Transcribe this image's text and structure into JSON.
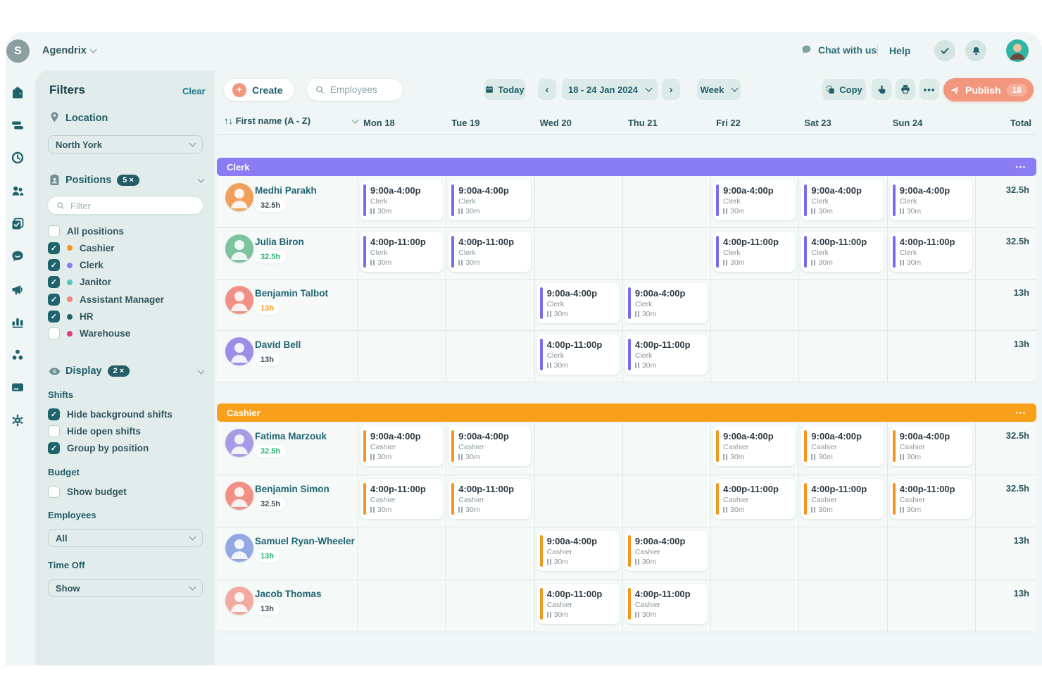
{
  "brand": {
    "logo_letter": "S",
    "name": "Agendrix"
  },
  "top_nav": {
    "chat_label": "Chat with us",
    "help_label": "Help"
  },
  "rail": {
    "items": [
      "home",
      "schedule",
      "time-clock",
      "team",
      "tasks",
      "messages",
      "announcements",
      "reports",
      "integrations",
      "billing",
      "settings"
    ]
  },
  "filters": {
    "title": "Filters",
    "clear_label": "Clear",
    "location": {
      "label": "Location",
      "value": "North York"
    },
    "positions": {
      "label": "Positions",
      "badge": "5 ×",
      "search_placeholder": "Filter",
      "items": [
        {
          "label": "All positions",
          "checked": false,
          "dot": null
        },
        {
          "label": "Cashier",
          "checked": true,
          "dot": "#F7941D"
        },
        {
          "label": "Clerk",
          "checked": true,
          "dot": "#8A7CF2"
        },
        {
          "label": "Janitor",
          "checked": true,
          "dot": "#56C4BC"
        },
        {
          "label": "Assistant Manager",
          "checked": true,
          "dot": "#F4837D"
        },
        {
          "label": "HR",
          "checked": true,
          "dot": "#1F646D"
        },
        {
          "label": "Warehouse",
          "checked": false,
          "dot": "#E0407E"
        }
      ]
    },
    "display": {
      "label": "Display",
      "badge": "2 ×",
      "shifts_label": "Shifts",
      "shift_options": [
        {
          "label": "Hide background shifts",
          "checked": true
        },
        {
          "label": "Hide open shifts",
          "checked": false
        },
        {
          "label": "Group by position",
          "checked": true
        }
      ],
      "budget_label": "Budget",
      "budget_options": [
        {
          "label": "Show budget",
          "checked": false
        }
      ],
      "employees_label": "Employees",
      "employees_value": "All",
      "timeoff_label": "Time Off",
      "timeoff_value": "Show"
    }
  },
  "toolbar": {
    "create_label": "Create",
    "search_placeholder": "Employees",
    "today_label": "Today",
    "date_range": "18 - 24 Jan 2024",
    "view_label": "Week",
    "copy_label": "Copy",
    "publish_label": "Publish",
    "publish_count": "18"
  },
  "schedule": {
    "sort_label": "First name (A - Z)",
    "days": [
      "Mon 18",
      "Tue 19",
      "Wed 20",
      "Thu 21",
      "Fri 22",
      "Sat 23",
      "Sun 24"
    ],
    "total_label": "Total",
    "groups": [
      {
        "label": "Clerk",
        "header_color": "#8A7CF2",
        "accent_color": "#7A6CF0",
        "rows": [
          {
            "name": "Medhi Parakh",
            "hours": "32.5h",
            "hours_color": "#3E4F5A",
            "avatar_color": "#F0A05A",
            "total": "32.5h",
            "shifts": [
              {
                "day": 0,
                "time": "9:00a-4:00p",
                "position": "Clerk",
                "break": "30m"
              },
              {
                "day": 1,
                "time": "9:00a-4:00p",
                "position": "Clerk",
                "break": "30m"
              },
              {
                "day": 4,
                "time": "9:00a-4:00p",
                "position": "Clerk",
                "break": "30m"
              },
              {
                "day": 5,
                "time": "9:00a-4:00p",
                "position": "Clerk",
                "break": "30m"
              },
              {
                "day": 6,
                "time": "9:00a-4:00p",
                "position": "Clerk",
                "break": "30m"
              }
            ]
          },
          {
            "name": "Julia Biron",
            "hours": "32.5h",
            "hours_color": "#2BB673",
            "avatar_color": "#7CC3A0",
            "total": "32.5h",
            "shifts": [
              {
                "day": 0,
                "time": "4:00p-11:00p",
                "position": "Clerk",
                "break": "30m"
              },
              {
                "day": 1,
                "time": "4:00p-11:00p",
                "position": "Clerk",
                "break": "30m"
              },
              {
                "day": 4,
                "time": "4:00p-11:00p",
                "position": "Clerk",
                "break": "30m"
              },
              {
                "day": 5,
                "time": "4:00p-11:00p",
                "position": "Clerk",
                "break": "30m"
              },
              {
                "day": 6,
                "time": "4:00p-11:00p",
                "position": "Clerk",
                "break": "30m"
              }
            ]
          },
          {
            "name": "Benjamin Talbot",
            "hours": "13h",
            "hours_color": "#F7941D",
            "avatar_color": "#F29086",
            "total": "13h",
            "shifts": [
              {
                "day": 2,
                "time": "9:00a-4:00p",
                "position": "Clerk",
                "break": "30m"
              },
              {
                "day": 3,
                "time": "9:00a-4:00p",
                "position": "Clerk",
                "break": "30m"
              }
            ]
          },
          {
            "name": "David Bell",
            "hours": "13h",
            "hours_color": "#3E4F5A",
            "avatar_color": "#9D8DE8",
            "total": "13h",
            "shifts": [
              {
                "day": 2,
                "time": "4:00p-11:00p",
                "position": "Clerk",
                "break": "30m"
              },
              {
                "day": 3,
                "time": "4:00p-11:00p",
                "position": "Clerk",
                "break": "30m"
              }
            ]
          }
        ]
      },
      {
        "label": "Cashier",
        "header_color": "#F9A01B",
        "accent_color": "#F7941D",
        "rows": [
          {
            "name": "Fatima Marzouk",
            "hours": "32.5h",
            "hours_color": "#2BB673",
            "avatar_color": "#A79BE6",
            "total": "32.5h",
            "shifts": [
              {
                "day": 0,
                "time": "9:00a-4:00p",
                "position": "Cashier",
                "break": "30m"
              },
              {
                "day": 1,
                "time": "9:00a-4:00p",
                "position": "Cashier",
                "break": "30m"
              },
              {
                "day": 4,
                "time": "9:00a-4:00p",
                "position": "Cashier",
                "break": "30m"
              },
              {
                "day": 5,
                "time": "9:00a-4:00p",
                "position": "Cashier",
                "break": "30m"
              },
              {
                "day": 6,
                "time": "9:00a-4:00p",
                "position": "Cashier",
                "break": "30m"
              }
            ]
          },
          {
            "name": "Benjamin Simon",
            "hours": "32.5h",
            "hours_color": "#3E4F5A",
            "avatar_color": "#F29086",
            "total": "32.5h",
            "shifts": [
              {
                "day": 0,
                "time": "4:00p-11:00p",
                "position": "Cashier",
                "break": "30m"
              },
              {
                "day": 1,
                "time": "4:00p-11:00p",
                "position": "Cashier",
                "break": "30m"
              },
              {
                "day": 4,
                "time": "4:00p-11:00p",
                "position": "Cashier",
                "break": "30m"
              },
              {
                "day": 5,
                "time": "4:00p-11:00p",
                "position": "Cashier",
                "break": "30m"
              },
              {
                "day": 6,
                "time": "4:00p-11:00p",
                "position": "Cashier",
                "break": "30m"
              }
            ]
          },
          {
            "name": "Samuel Ryan-Wheeler",
            "hours": "13h",
            "hours_color": "#2BB673",
            "avatar_color": "#93A7E3",
            "total": "13h",
            "shifts": [
              {
                "day": 2,
                "time": "9:00a-4:00p",
                "position": "Cashier",
                "break": "30m"
              },
              {
                "day": 3,
                "time": "9:00a-4:00p",
                "position": "Cashier",
                "break": "30m"
              }
            ]
          },
          {
            "name": "Jacob Thomas",
            "hours": "13h",
            "hours_color": "#3E4F5A",
            "avatar_color": "#F2A9A0",
            "total": "13h",
            "shifts": [
              {
                "day": 2,
                "time": "4:00p-11:00p",
                "position": "Cashier",
                "break": "30m"
              },
              {
                "day": 3,
                "time": "4:00p-11:00p",
                "position": "Cashier",
                "break": "30m"
              }
            ]
          }
        ]
      }
    ]
  }
}
